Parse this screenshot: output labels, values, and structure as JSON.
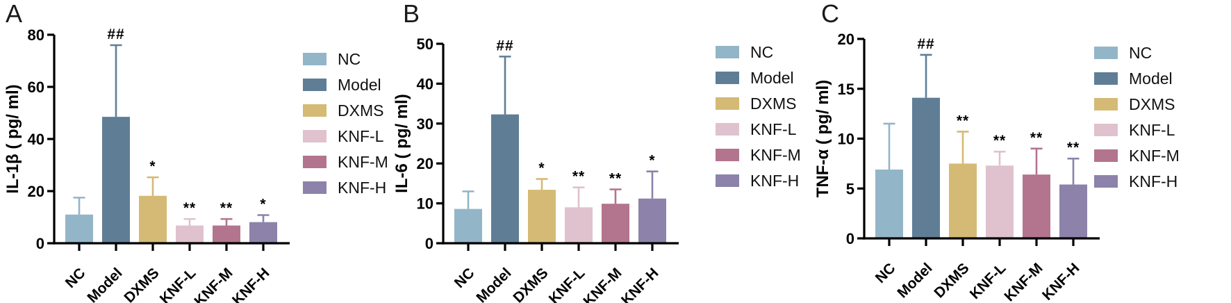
{
  "figure": {
    "description": "Three-panel bar figure of inflammatory cytokine levels with SD error bars and significance marks"
  },
  "legend": {
    "items": [
      {
        "label": "NC",
        "color": "#93b5c8"
      },
      {
        "label": "Model",
        "color": "#5f7e96"
      },
      {
        "label": "DXMS",
        "color": "#d5ba75"
      },
      {
        "label": "KNF-L",
        "color": "#dfc2ce"
      },
      {
        "label": "KNF-M",
        "color": "#b3748e"
      },
      {
        "label": "KNF-H",
        "color": "#8c82aa"
      }
    ]
  },
  "chart_data": [
    {
      "panel": "A",
      "type": "bar",
      "title": "",
      "ylabel": "IL-1β ( pg/ ml)",
      "xlabel": "",
      "ylim": [
        0,
        80
      ],
      "yticks": [
        0,
        20,
        40,
        60,
        80
      ],
      "categories": [
        "NC",
        "Model",
        "DXMS",
        "KNF-L",
        "KNF-M",
        "KNF-H"
      ],
      "values": [
        11,
        48.5,
        18.2,
        6.8,
        6.8,
        8.1
      ],
      "errors": [
        6.5,
        27.5,
        7.1,
        2.5,
        2.5,
        2.7
      ],
      "annotations": [
        "",
        "##",
        "*",
        "**",
        "**",
        "*"
      ],
      "grid": "off",
      "legend_position": "right"
    },
    {
      "panel": "B",
      "type": "bar",
      "title": "",
      "ylabel": "IL-6 ( pg/ ml)",
      "xlabel": "",
      "ylim": [
        0,
        50
      ],
      "yticks": [
        0,
        10,
        20,
        30,
        40,
        50
      ],
      "categories": [
        "NC",
        "Model",
        "DXMS",
        "KNF-L",
        "KNF-M",
        "KNF-H"
      ],
      "values": [
        8.6,
        32.3,
        13.4,
        9.0,
        9.9,
        11.2
      ],
      "errors": [
        4.4,
        14.5,
        2.7,
        5.0,
        3.6,
        6.8
      ],
      "annotations": [
        "",
        "##",
        "*",
        "**",
        "**",
        "*"
      ],
      "grid": "off",
      "legend_position": "right"
    },
    {
      "panel": "C",
      "type": "bar",
      "title": "",
      "ylabel": "TNF-α ( pg/ ml)",
      "xlabel": "",
      "ylim": [
        0,
        20
      ],
      "yticks": [
        0,
        5,
        10,
        15,
        20
      ],
      "categories": [
        "NC",
        "Model",
        "DXMS",
        "KNF-L",
        "KNF-M",
        "KNF-H"
      ],
      "values": [
        6.9,
        14.1,
        7.5,
        7.3,
        6.4,
        5.4
      ],
      "errors": [
        4.6,
        4.3,
        3.2,
        1.4,
        2.6,
        2.6
      ],
      "annotations": [
        "",
        "##",
        "**",
        "**",
        "**",
        "**"
      ],
      "grid": "off",
      "legend_position": "right"
    }
  ]
}
